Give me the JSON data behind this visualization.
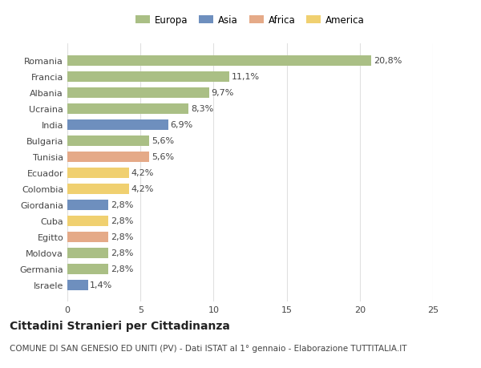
{
  "categories": [
    "Israele",
    "Germania",
    "Moldova",
    "Egitto",
    "Cuba",
    "Giordania",
    "Colombia",
    "Ecuador",
    "Tunisia",
    "Bulgaria",
    "India",
    "Ucraina",
    "Albania",
    "Francia",
    "Romania"
  ],
  "values": [
    1.4,
    2.8,
    2.8,
    2.8,
    2.8,
    2.8,
    4.2,
    4.2,
    5.6,
    5.6,
    6.9,
    8.3,
    9.7,
    11.1,
    20.8
  ],
  "colors": [
    "#6e8fbe",
    "#aabf85",
    "#aabf85",
    "#e5aa88",
    "#f0d070",
    "#6e8fbe",
    "#f0d070",
    "#f0d070",
    "#e5aa88",
    "#aabf85",
    "#6e8fbe",
    "#aabf85",
    "#aabf85",
    "#aabf85",
    "#aabf85"
  ],
  "labels": [
    "1,4%",
    "2,8%",
    "2,8%",
    "2,8%",
    "2,8%",
    "2,8%",
    "4,2%",
    "4,2%",
    "5,6%",
    "5,6%",
    "6,9%",
    "8,3%",
    "9,7%",
    "11,1%",
    "20,8%"
  ],
  "legend_labels": [
    "Europa",
    "Asia",
    "Africa",
    "America"
  ],
  "legend_colors": [
    "#aabf85",
    "#6e8fbe",
    "#e5aa88",
    "#f0d070"
  ],
  "title": "Cittadini Stranieri per Cittadinanza",
  "subtitle": "COMUNE DI SAN GENESIO ED UNITI (PV) - Dati ISTAT al 1° gennaio - Elaborazione TUTTITALIA.IT",
  "xlim": [
    0,
    25
  ],
  "xticks": [
    0,
    5,
    10,
    15,
    20,
    25
  ],
  "bg_color": "#ffffff",
  "plot_bg_color": "#ffffff",
  "grid_color": "#e0e0e0",
  "text_color": "#444444",
  "title_fontsize": 10,
  "subtitle_fontsize": 7.5,
  "label_fontsize": 8,
  "tick_fontsize": 8,
  "legend_fontsize": 8.5
}
